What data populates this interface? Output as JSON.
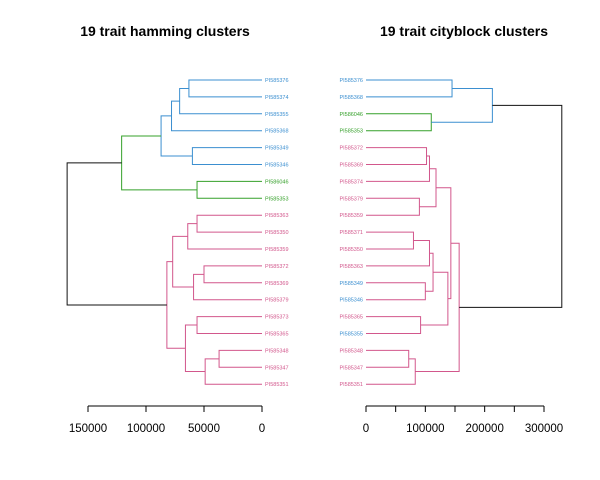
{
  "colors": {
    "blue": "#3b8fd0",
    "green": "#35a02a",
    "pink": "#d2578c",
    "root": "#111111",
    "axis": "#000000"
  },
  "chart_data": [
    {
      "type": "dendrogram",
      "title": "19 trait hamming clusters",
      "orientation": "leaves-right",
      "axis": {
        "xlim": [
          170000,
          0
        ],
        "ticks": [
          150000,
          100000,
          50000,
          0
        ],
        "tick_labels": [
          "150000",
          "100000",
          "50000",
          "0"
        ]
      },
      "leaves": [
        {
          "label": "PI585376",
          "color": "blue"
        },
        {
          "label": "PI585374",
          "color": "blue"
        },
        {
          "label": "PI585355",
          "color": "blue"
        },
        {
          "label": "PI585368",
          "color": "blue"
        },
        {
          "label": "PI585349",
          "color": "blue"
        },
        {
          "label": "PI585346",
          "color": "blue"
        },
        {
          "label": "PI586046",
          "color": "green"
        },
        {
          "label": "PI585353",
          "color": "green"
        },
        {
          "label": "PI585363",
          "color": "pink"
        },
        {
          "label": "PI585350",
          "color": "pink"
        },
        {
          "label": "PI585359",
          "color": "pink"
        },
        {
          "label": "PI585372",
          "color": "pink"
        },
        {
          "label": "PI585369",
          "color": "pink"
        },
        {
          "label": "PI585379",
          "color": "pink"
        },
        {
          "label": "PI585373",
          "color": "pink"
        },
        {
          "label": "PI585365",
          "color": "pink"
        },
        {
          "label": "PI585348",
          "color": "pink"
        },
        {
          "label": "PI585347",
          "color": "pink"
        },
        {
          "label": "PI585351",
          "color": "pink"
        }
      ],
      "merges": [
        {
          "a": "L0",
          "b": "L1",
          "height": 63000,
          "color": "blue"
        },
        {
          "a": "M0",
          "b": "L2",
          "height": 71000,
          "color": "blue"
        },
        {
          "a": "M1",
          "b": "L3",
          "height": 78000,
          "color": "blue"
        },
        {
          "a": "L4",
          "b": "L5",
          "height": 60000,
          "color": "blue"
        },
        {
          "a": "M2",
          "b": "M3",
          "height": 87000,
          "color": "blue"
        },
        {
          "a": "L6",
          "b": "L7",
          "height": 56000,
          "color": "green"
        },
        {
          "a": "M4",
          "b": "M5",
          "height": 121000,
          "color": "green"
        },
        {
          "a": "L8",
          "b": "L9",
          "height": 56000,
          "color": "pink"
        },
        {
          "a": "M7",
          "b": "L10",
          "height": 64000,
          "color": "pink"
        },
        {
          "a": "L11",
          "b": "L12",
          "height": 50000,
          "color": "pink"
        },
        {
          "a": "M9",
          "b": "L13",
          "height": 59000,
          "color": "pink"
        },
        {
          "a": "M8",
          "b": "M10",
          "height": 77000,
          "color": "pink"
        },
        {
          "a": "L14",
          "b": "L15",
          "height": 56000,
          "color": "pink"
        },
        {
          "a": "L16",
          "b": "L17",
          "height": 37000,
          "color": "pink"
        },
        {
          "a": "M13",
          "b": "L18",
          "height": 49000,
          "color": "pink"
        },
        {
          "a": "M12",
          "b": "M14",
          "height": 66000,
          "color": "pink"
        },
        {
          "a": "M11",
          "b": "M15",
          "height": 82000,
          "color": "pink"
        },
        {
          "a": "M6",
          "b": "M16",
          "height": 168000,
          "color": "root"
        }
      ]
    },
    {
      "type": "dendrogram",
      "title": "19 trait cityblock clusters",
      "orientation": "leaves-left",
      "axis": {
        "xlim": [
          0,
          330000
        ],
        "ticks": [
          0,
          50000,
          100000,
          150000,
          200000,
          250000,
          300000
        ],
        "tick_labels": [
          "0",
          "",
          "100000",
          "",
          "200000",
          "",
          "300000"
        ]
      },
      "leaves": [
        {
          "label": "PI585376",
          "color": "blue"
        },
        {
          "label": "PI585368",
          "color": "blue"
        },
        {
          "label": "PI586046",
          "color": "green"
        },
        {
          "label": "PI585353",
          "color": "green"
        },
        {
          "label": "PI585372",
          "color": "pink"
        },
        {
          "label": "PI585369",
          "color": "pink"
        },
        {
          "label": "PI585374",
          "color": "pink"
        },
        {
          "label": "PI585379",
          "color": "pink"
        },
        {
          "label": "PI585359",
          "color": "pink"
        },
        {
          "label": "PI585371",
          "color": "pink"
        },
        {
          "label": "PI585350",
          "color": "pink"
        },
        {
          "label": "PI585363",
          "color": "pink"
        },
        {
          "label": "PI585349",
          "color": "blue"
        },
        {
          "label": "PI585346",
          "color": "blue"
        },
        {
          "label": "PI585365",
          "color": "pink"
        },
        {
          "label": "PI585355",
          "color": "blue"
        },
        {
          "label": "PI585348",
          "color": "pink"
        },
        {
          "label": "PI585347",
          "color": "pink"
        },
        {
          "label": "PI585351",
          "color": "pink"
        }
      ],
      "merges": [
        {
          "a": "L0",
          "b": "L1",
          "height": 145000,
          "color": "blue"
        },
        {
          "a": "L2",
          "b": "L3",
          "height": 110000,
          "color": "green"
        },
        {
          "a": "M0",
          "b": "M1",
          "height": 213000,
          "color": "blue"
        },
        {
          "a": "L4",
          "b": "L5",
          "height": 102000,
          "color": "pink"
        },
        {
          "a": "M3",
          "b": "L6",
          "height": 107000,
          "color": "pink"
        },
        {
          "a": "L7",
          "b": "L8",
          "height": 90000,
          "color": "pink"
        },
        {
          "a": "M4",
          "b": "M5",
          "height": 118000,
          "color": "pink"
        },
        {
          "a": "L9",
          "b": "L10",
          "height": 80000,
          "color": "pink"
        },
        {
          "a": "M7",
          "b": "L11",
          "height": 107000,
          "color": "pink"
        },
        {
          "a": "L12",
          "b": "L13",
          "height": 100000,
          "color": "pink"
        },
        {
          "a": "M8",
          "b": "M9",
          "height": 113000,
          "color": "pink"
        },
        {
          "a": "L14",
          "b": "L15",
          "height": 92000,
          "color": "pink"
        },
        {
          "a": "M10",
          "b": "M11",
          "height": 138000,
          "color": "pink"
        },
        {
          "a": "M6",
          "b": "M12",
          "height": 143000,
          "color": "pink"
        },
        {
          "a": "L16",
          "b": "L17",
          "height": 72000,
          "color": "pink"
        },
        {
          "a": "M14",
          "b": "L18",
          "height": 83000,
          "color": "pink"
        },
        {
          "a": "M13",
          "b": "M15",
          "height": 157000,
          "color": "pink"
        },
        {
          "a": "M2",
          "b": "M16",
          "height": 330000,
          "color": "root"
        }
      ]
    }
  ]
}
